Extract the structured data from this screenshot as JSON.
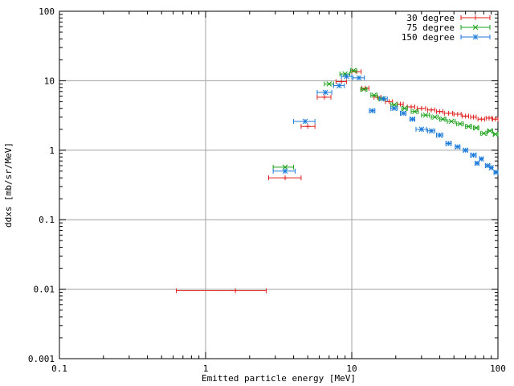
{
  "chart_data": {
    "type": "scatter",
    "title": "",
    "xlabel": "Emitted particle energy [MeV]",
    "ylabel": "ddxs [mb/sr/MeV]",
    "xscale": "log",
    "yscale": "log",
    "xlim": [
      0.1,
      100
    ],
    "ylim": [
      0.001,
      100
    ],
    "x_ticks": [
      0.1,
      1,
      10,
      100
    ],
    "x_tick_labels": [
      "0.1",
      "1",
      "10",
      "100"
    ],
    "y_ticks": [
      0.001,
      0.01,
      0.1,
      1,
      10,
      100
    ],
    "y_tick_labels": [
      "0.001",
      "0.01",
      "0.1",
      "1",
      "10",
      "100"
    ],
    "grid": true,
    "legend_position": "top-right",
    "series": [
      {
        "name": "30 degree",
        "color": "#e0201c",
        "marker": "plus",
        "points": [
          {
            "x": 1.6,
            "y": 0.0095,
            "xlo": 0.63,
            "xhi": 2.6
          },
          {
            "x": 3.5,
            "y": 0.4,
            "xlo": 2.7,
            "xhi": 4.5
          },
          {
            "x": 5.0,
            "y": 2.2,
            "xlo": 4.5,
            "xhi": 5.6
          },
          {
            "x": 6.5,
            "y": 5.8,
            "xlo": 5.8,
            "xhi": 7.2
          },
          {
            "x": 8.5,
            "y": 9.7,
            "xlo": 7.8,
            "xhi": 9.2
          },
          {
            "x": 10.8,
            "y": 13.5,
            "xlo": 10.0,
            "xhi": 11.6
          },
          {
            "x": 12.4,
            "y": 7.8,
            "xlo": 11.7,
            "xhi": 13.1
          },
          {
            "x": 15.0,
            "y": 5.8,
            "xlo": 14.2,
            "xhi": 15.8
          },
          {
            "x": 18.0,
            "y": 5.0,
            "xlo": 17.0,
            "xhi": 19.0
          },
          {
            "x": 21.5,
            "y": 4.6,
            "xlo": 20.5,
            "xhi": 22.5
          },
          {
            "x": 25.5,
            "y": 4.2,
            "xlo": 24.0,
            "xhi": 27.0
          },
          {
            "x": 30.0,
            "y": 4.0,
            "xlo": 28.0,
            "xhi": 32.0
          },
          {
            "x": 35.0,
            "y": 3.8,
            "xlo": 33.0,
            "xhi": 37.0
          },
          {
            "x": 40.0,
            "y": 3.6,
            "xlo": 38.0,
            "xhi": 42.0
          },
          {
            "x": 46.0,
            "y": 3.4,
            "xlo": 43.0,
            "xhi": 49.0
          },
          {
            "x": 53.0,
            "y": 3.3,
            "xlo": 50.0,
            "xhi": 56.0
          },
          {
            "x": 60.0,
            "y": 3.1,
            "xlo": 57.0,
            "xhi": 63.0
          },
          {
            "x": 68.0,
            "y": 3.0,
            "xlo": 65.0,
            "xhi": 71.0
          },
          {
            "x": 77.0,
            "y": 2.8,
            "xlo": 73.0,
            "xhi": 81.0
          },
          {
            "x": 87.0,
            "y": 2.9,
            "xlo": 83.0,
            "xhi": 91.0
          },
          {
            "x": 96.0,
            "y": 2.8,
            "xlo": 92.0,
            "xhi": 100.0
          }
        ]
      },
      {
        "name": "75 degree",
        "color": "#1aa01a",
        "marker": "cross",
        "points": [
          {
            "x": 3.5,
            "y": 0.57,
            "xlo": 2.9,
            "xhi": 4.0
          },
          {
            "x": 7.0,
            "y": 9.0,
            "xlo": 6.5,
            "xhi": 7.5
          },
          {
            "x": 9.0,
            "y": 12.5,
            "xlo": 8.3,
            "xhi": 9.7
          },
          {
            "x": 10.3,
            "y": 14.0,
            "xlo": 9.8,
            "xhi": 10.8
          },
          {
            "x": 12.1,
            "y": 7.5,
            "xlo": 11.5,
            "xhi": 12.7
          },
          {
            "x": 14.2,
            "y": 6.2,
            "xlo": 13.5,
            "xhi": 14.9
          },
          {
            "x": 16.0,
            "y": 5.5,
            "xlo": 15.2,
            "xhi": 16.8
          },
          {
            "x": 19.5,
            "y": 4.5,
            "xlo": 18.5,
            "xhi": 20.5
          },
          {
            "x": 23.0,
            "y": 4.0,
            "xlo": 22.0,
            "xhi": 24.0
          },
          {
            "x": 27.0,
            "y": 3.6,
            "xlo": 25.5,
            "xhi": 28.5
          },
          {
            "x": 32.0,
            "y": 3.2,
            "xlo": 30.0,
            "xhi": 34.0
          },
          {
            "x": 37.0,
            "y": 3.0,
            "xlo": 35.0,
            "xhi": 39.0
          },
          {
            "x": 42.0,
            "y": 2.8,
            "xlo": 40.0,
            "xhi": 44.0
          },
          {
            "x": 48.0,
            "y": 2.6,
            "xlo": 45.0,
            "xhi": 51.0
          },
          {
            "x": 55.0,
            "y": 2.4,
            "xlo": 52.0,
            "xhi": 58.0
          },
          {
            "x": 63.0,
            "y": 2.2,
            "xlo": 60.0,
            "xhi": 66.0
          },
          {
            "x": 71.0,
            "y": 2.1,
            "xlo": 68.0,
            "xhi": 74.0
          },
          {
            "x": 80.0,
            "y": 1.75,
            "xlo": 76.0,
            "xhi": 84.0
          },
          {
            "x": 88.0,
            "y": 1.9,
            "xlo": 85.0,
            "xhi": 92.0
          },
          {
            "x": 96.0,
            "y": 1.7,
            "xlo": 93.0,
            "xhi": 100.0
          }
        ]
      },
      {
        "name": "150 degree",
        "color": "#1b7ad8",
        "marker": "star",
        "points": [
          {
            "x": 3.5,
            "y": 0.5,
            "xlo": 2.9,
            "xhi": 4.1
          },
          {
            "x": 4.8,
            "y": 2.6,
            "xlo": 4.0,
            "xhi": 5.6
          },
          {
            "x": 6.6,
            "y": 6.8,
            "xlo": 5.8,
            "xhi": 7.3
          },
          {
            "x": 8.2,
            "y": 8.5,
            "xlo": 7.5,
            "xhi": 8.9
          },
          {
            "x": 9.2,
            "y": 11.5,
            "xlo": 8.5,
            "xhi": 10.0
          },
          {
            "x": 11.2,
            "y": 11.0,
            "xlo": 10.2,
            "xhi": 12.2
          },
          {
            "x": 13.8,
            "y": 3.7,
            "xlo": 13.2,
            "xhi": 14.4
          },
          {
            "x": 16.5,
            "y": 5.5,
            "xlo": 15.5,
            "xhi": 17.5
          },
          {
            "x": 19.5,
            "y": 4.0,
            "xlo": 18.5,
            "xhi": 20.5
          },
          {
            "x": 22.5,
            "y": 3.4,
            "xlo": 21.5,
            "xhi": 23.5
          },
          {
            "x": 26.0,
            "y": 2.8,
            "xlo": 25.0,
            "xhi": 27.0
          },
          {
            "x": 30.0,
            "y": 2.0,
            "xlo": 27.5,
            "xhi": 32.5
          },
          {
            "x": 35.0,
            "y": 1.9,
            "xlo": 33.0,
            "xhi": 37.0
          },
          {
            "x": 40.0,
            "y": 1.65,
            "xlo": 38.0,
            "xhi": 42.0
          },
          {
            "x": 46.0,
            "y": 1.25,
            "xlo": 44.0,
            "xhi": 48.0
          },
          {
            "x": 53.0,
            "y": 1.12,
            "xlo": 51.0,
            "xhi": 55.0
          },
          {
            "x": 60.0,
            "y": 1.0,
            "xlo": 58.0,
            "xhi": 62.0
          },
          {
            "x": 68.0,
            "y": 0.85,
            "xlo": 65.0,
            "xhi": 71.0
          },
          {
            "x": 72.0,
            "y": 0.65,
            "xlo": 70.0,
            "xhi": 74.0
          },
          {
            "x": 77.0,
            "y": 0.75,
            "xlo": 75.0,
            "xhi": 79.0
          },
          {
            "x": 85.0,
            "y": 0.6,
            "xlo": 82.0,
            "xhi": 88.0
          },
          {
            "x": 90.0,
            "y": 0.56,
            "xlo": 88.0,
            "xhi": 92.0
          },
          {
            "x": 97.0,
            "y": 0.48,
            "xlo": 94.0,
            "xhi": 100.0
          }
        ]
      }
    ]
  }
}
